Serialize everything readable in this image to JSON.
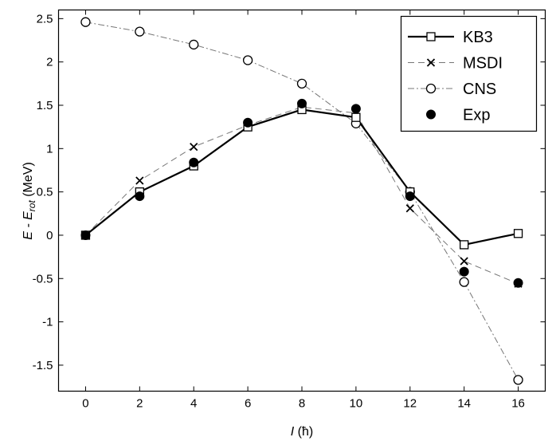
{
  "chart_data": {
    "type": "line",
    "x": [
      0,
      2,
      4,
      6,
      8,
      10,
      12,
      14,
      16
    ],
    "xlim": [
      -1,
      17
    ],
    "ylim": [
      -1.8,
      2.6
    ],
    "xticks": [
      "0",
      "2",
      "4",
      "6",
      "8",
      "10",
      "12",
      "14",
      "16"
    ],
    "yticks": [
      "2.5",
      "2",
      "1.5",
      "1",
      "0.5",
      "0",
      "-0.5",
      "-1",
      "-1.5"
    ],
    "xlabel": {
      "italic": "I",
      "rest": " (ħ)"
    },
    "ylabel": {
      "main": "E - E",
      "sub": "rot",
      "unit": " (MeV)"
    },
    "grid": false,
    "legend_position": "top-right",
    "series": [
      {
        "name": "KB3",
        "marker": "square",
        "line": "solid",
        "values": [
          0,
          0.5,
          0.8,
          1.25,
          1.45,
          1.36,
          0.5,
          -0.11,
          0.02
        ]
      },
      {
        "name": "MSDI",
        "marker": "x",
        "line": "dashed",
        "values": [
          0,
          0.63,
          1.02,
          1.27,
          1.48,
          1.41,
          0.31,
          -0.3,
          -0.56
        ]
      },
      {
        "name": "CNS",
        "marker": "circle-open",
        "line": "dashdot",
        "values": [
          2.46,
          2.35,
          2.2,
          2.02,
          1.75,
          1.29,
          0.5,
          -0.54,
          -1.67
        ]
      },
      {
        "name": "Exp",
        "marker": "circle-filled",
        "line": "none",
        "values": [
          0,
          0.45,
          0.84,
          1.3,
          1.52,
          1.46,
          0.45,
          -0.42,
          -0.55
        ]
      }
    ]
  }
}
